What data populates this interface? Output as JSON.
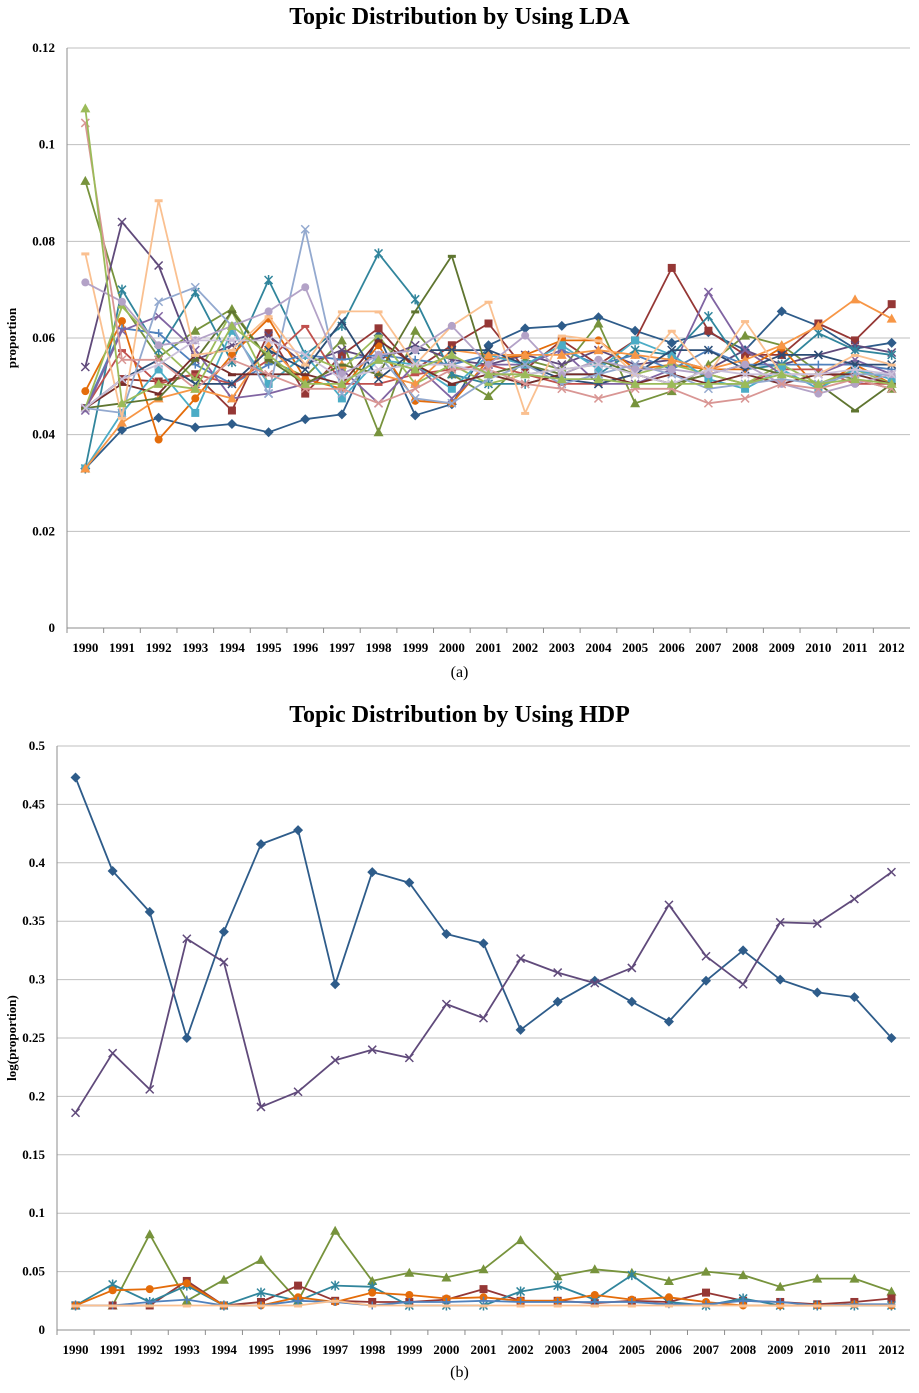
{
  "chart_data": [
    {
      "type": "line",
      "title": "Topic Distribution by Using LDA",
      "caption": "(a)",
      "xlabel": "",
      "ylabel": "proportion",
      "ylim": [
        0,
        0.12
      ],
      "yticks": [
        "0",
        "0.02",
        "0.04",
        "0.06",
        "0.08",
        "0.1",
        "0.12"
      ],
      "x": [
        "1990",
        "1991",
        "1992",
        "1993",
        "1994",
        "1995",
        "1996",
        "1997",
        "1998",
        "1999",
        "2000",
        "2001",
        "2002",
        "2003",
        "2004",
        "2005",
        "2006",
        "2007",
        "2008",
        "2009",
        "2010",
        "2011",
        "2012"
      ],
      "grid": true,
      "series": [
        {
          "color": "#2e5c8a",
          "marker": "diamond",
          "values": [
            0.033,
            0.041,
            0.0435,
            0.0415,
            0.0422,
            0.0405,
            0.0432,
            0.0442,
            0.0605,
            0.044,
            0.0463,
            0.0585,
            0.062,
            0.0625,
            0.0643,
            0.0615,
            0.059,
            0.0612,
            0.0575,
            0.0655,
            0.0625,
            0.0578,
            0.059
          ]
        },
        {
          "color": "#953735",
          "marker": "square",
          "values": [
            0.0455,
            0.0515,
            0.051,
            0.0525,
            0.045,
            0.061,
            0.0485,
            0.0565,
            0.062,
            0.0535,
            0.0585,
            0.063,
            0.0535,
            0.0595,
            0.0545,
            0.0595,
            0.0745,
            0.0615,
            0.0565,
            0.0565,
            0.063,
            0.0595,
            0.067
          ]
        },
        {
          "color": "#77933c",
          "marker": "triangle",
          "values": [
            0.0925,
            0.067,
            0.056,
            0.0615,
            0.066,
            0.0555,
            0.052,
            0.0595,
            0.0405,
            0.0615,
            0.0525,
            0.048,
            0.0555,
            0.0535,
            0.063,
            0.0465,
            0.049,
            0.0545,
            0.0605,
            0.0585,
            0.053,
            0.0515,
            0.0495
          ]
        },
        {
          "color": "#604a7b",
          "marker": "x",
          "values": [
            0.054,
            0.084,
            0.075,
            0.0555,
            0.0585,
            0.0605,
            0.0545,
            0.0575,
            0.0555,
            0.0585,
            0.0555,
            0.0545,
            0.0565,
            0.0545,
            0.0575,
            0.0545,
            0.0555,
            0.0535,
            0.0575,
            0.0545,
            0.0565,
            0.0585,
            0.057
          ]
        },
        {
          "color": "#31859c",
          "marker": "star",
          "values": [
            0.033,
            0.07,
            0.0575,
            0.0695,
            0.055,
            0.072,
            0.0565,
            0.0625,
            0.0775,
            0.068,
            0.0525,
            0.0505,
            0.0505,
            0.0525,
            0.0525,
            0.0575,
            0.0565,
            0.0645,
            0.0535,
            0.0545,
            0.061,
            0.0575,
            0.0565
          ]
        },
        {
          "color": "#e46c0a",
          "marker": "circle",
          "values": [
            0.049,
            0.0635,
            0.039,
            0.0475,
            0.0565,
            0.064,
            0.0515,
            0.0495,
            0.0585,
            0.047,
            0.0465,
            0.0555,
            0.0565,
            0.0595,
            0.0595,
            0.0535,
            0.0545,
            0.0535,
            0.0535,
            0.058,
            0.0495,
            0.0545,
            0.0505
          ]
        },
        {
          "color": "#4f81bd",
          "marker": "plus",
          "values": [
            0.0455,
            0.062,
            0.061,
            0.0545,
            0.0505,
            0.0545,
            0.0565,
            0.0555,
            0.0565,
            0.0555,
            0.0545,
            0.0565,
            0.0545,
            0.0575,
            0.0545,
            0.0565,
            0.0535,
            0.0575,
            0.0545,
            0.0545,
            0.0545,
            0.0545,
            0.0535
          ]
        },
        {
          "color": "#c0504d",
          "marker": "dash",
          "values": [
            0.0455,
            0.0575,
            0.0505,
            0.0525,
            0.0505,
            0.0555,
            0.0625,
            0.0505,
            0.0505,
            0.0525,
            0.0535,
            0.0545,
            0.0525,
            0.0505,
            0.0505,
            0.0525,
            0.0505,
            0.0525,
            0.0505,
            0.0535,
            0.0535,
            0.0505,
            0.0505
          ]
        },
        {
          "color": "#9bbb59",
          "marker": "dash",
          "values": [
            0.0455,
            0.0665,
            0.0585,
            0.0515,
            0.0655,
            0.0505,
            0.0565,
            0.0535,
            0.0605,
            0.0505,
            0.0545,
            0.0505,
            0.0525,
            0.0535,
            0.0545,
            0.0525,
            0.0545,
            0.0525,
            0.0505,
            0.0545,
            0.0505,
            0.0535,
            0.0505
          ]
        },
        {
          "color": "#8064a2",
          "marker": "x",
          "values": [
            0.045,
            0.0615,
            0.0645,
            0.0575,
            0.0475,
            0.0485,
            0.0505,
            0.0535,
            0.0465,
            0.0545,
            0.0475,
            0.0545,
            0.0545,
            0.0575,
            0.0505,
            0.0505,
            0.0535,
            0.0695,
            0.0575,
            0.0525,
            0.0525,
            0.0555,
            0.0525
          ]
        },
        {
          "color": "#4bacc6",
          "marker": "square",
          "values": [
            0.033,
            0.0445,
            0.0535,
            0.0445,
            0.0615,
            0.0505,
            0.0565,
            0.0475,
            0.0555,
            0.0545,
            0.0495,
            0.0565,
            0.0545,
            0.0585,
            0.0535,
            0.0595,
            0.0565,
            0.0515,
            0.0495,
            0.0535,
            0.0495,
            0.0535,
            0.0515
          ]
        },
        {
          "color": "#f79646",
          "marker": "triangle",
          "values": [
            0.033,
            0.0425,
            0.0475,
            0.0495,
            0.0475,
            0.0585,
            0.0505,
            0.0545,
            0.0525,
            0.0505,
            0.0575,
            0.0565,
            0.0565,
            0.0565,
            0.0575,
            0.0565,
            0.0555,
            0.0535,
            0.0555,
            0.0585,
            0.0625,
            0.068,
            0.064
          ]
        },
        {
          "color": "#2c4d75",
          "marker": "x",
          "values": [
            0.0455,
            0.0515,
            0.0555,
            0.0505,
            0.0505,
            0.0575,
            0.0535,
            0.0635,
            0.0515,
            0.0575,
            0.0575,
            0.0575,
            0.0545,
            0.0515,
            0.0505,
            0.0525,
            0.0575,
            0.0575,
            0.0535,
            0.0565,
            0.0565,
            0.0545,
            0.0545
          ]
        },
        {
          "color": "#772c2a",
          "marker": "dash",
          "values": [
            0.0455,
            0.0505,
            0.0485,
            0.0565,
            0.0525,
            0.0525,
            0.0525,
            0.0505,
            0.0595,
            0.0545,
            0.0505,
            0.0525,
            0.0505,
            0.0525,
            0.0525,
            0.0505,
            0.0525,
            0.0505,
            0.0525,
            0.0505,
            0.0525,
            0.0525,
            0.0505
          ]
        },
        {
          "color": "#5f7530",
          "marker": "dash",
          "values": [
            0.0455,
            0.0465,
            0.0475,
            0.0555,
            0.0655,
            0.0555,
            0.0505,
            0.0545,
            0.0525,
            0.0655,
            0.077,
            0.0525,
            0.0545,
            0.0525,
            0.0555,
            0.0525,
            0.0505,
            0.0525,
            0.0545,
            0.0525,
            0.0505,
            0.045,
            0.0505
          ]
        },
        {
          "color": "#93a9cf",
          "marker": "x",
          "values": [
            0.0455,
            0.0445,
            0.0675,
            0.0705,
            0.0625,
            0.0485,
            0.0825,
            0.0485,
            0.0565,
            0.0475,
            0.0465,
            0.0515,
            0.0545,
            0.0505,
            0.0525,
            0.0545,
            0.0525,
            0.0495,
            0.0505,
            0.0515,
            0.0505,
            0.0525,
            0.0525
          ]
        },
        {
          "color": "#fac090",
          "marker": "dash",
          "values": [
            0.0775,
            0.0435,
            0.0885,
            0.0565,
            0.0575,
            0.0645,
            0.0545,
            0.0655,
            0.0655,
            0.0545,
            0.0625,
            0.0675,
            0.0445,
            0.0605,
            0.0595,
            0.0525,
            0.0615,
            0.0525,
            0.0635,
            0.0525,
            0.0525,
            0.0565,
            0.0545
          ]
        },
        {
          "color": "#b3a2c7",
          "marker": "circle",
          "values": [
            0.0715,
            0.0675,
            0.0585,
            0.0595,
            0.0625,
            0.0655,
            0.0705,
            0.0525,
            0.0565,
            0.0575,
            0.0625,
            0.0545,
            0.0605,
            0.0525,
            0.0555,
            0.0535,
            0.0535,
            0.0525,
            0.0545,
            0.0505,
            0.0485,
            0.0505,
            0.0525
          ]
        },
        {
          "color": "#d99694",
          "marker": "x",
          "values": [
            0.1045,
            0.0555,
            0.0555,
            0.0495,
            0.0555,
            0.0525,
            0.0495,
            0.0495,
            0.0465,
            0.0495,
            0.0535,
            0.0535,
            0.0505,
            0.0495,
            0.0475,
            0.0495,
            0.0495,
            0.0465,
            0.0475,
            0.0505,
            0.0495,
            0.0515,
            0.0495
          ]
        },
        {
          "color": "#ccc1da",
          "marker": "x",
          "values": [
            0.0455,
            0.0515,
            0.0545,
            0.0595,
            0.0595,
            0.0595,
            0.0565,
            0.0515,
            0.0535,
            0.0545,
            0.0545,
            0.0525,
            0.0525,
            0.0535,
            0.0545,
            0.0525,
            0.0505,
            0.0535,
            0.0525,
            0.0525,
            0.0525,
            0.0535,
            0.0525
          ]
        },
        {
          "color": "#9bbb59",
          "marker": "triangle",
          "values": [
            0.1075,
            0.0465,
            0.0505,
            0.0495,
            0.0625,
            0.0565,
            0.0505,
            0.0505,
            0.0555,
            0.0535,
            0.0565,
            0.0525,
            0.0525,
            0.0515,
            0.0515,
            0.0505,
            0.0505,
            0.0505,
            0.0505,
            0.0525,
            0.0505,
            0.0515,
            0.0505
          ]
        }
      ]
    },
    {
      "type": "line",
      "title": "Topic Distribution by Using HDP",
      "caption": "(b)",
      "xlabel": "",
      "ylabel": "log(proportion)",
      "ylim": [
        0,
        0.5
      ],
      "yticks": [
        "0",
        "0.05",
        "0.1",
        "0.15",
        "0.2",
        "0.25",
        "0.3",
        "0.35",
        "0.4",
        "0.45",
        "0.5"
      ],
      "x": [
        "1990",
        "1991",
        "1992",
        "1993",
        "1994",
        "1995",
        "1996",
        "1997",
        "1998",
        "1999",
        "2000",
        "2001",
        "2002",
        "2003",
        "2004",
        "2005",
        "2006",
        "2007",
        "2008",
        "2009",
        "2010",
        "2011",
        "2012"
      ],
      "grid": true,
      "series": [
        {
          "color": "#2e5c8a",
          "marker": "diamond",
          "values": [
            0.473,
            0.393,
            0.358,
            0.25,
            0.341,
            0.416,
            0.428,
            0.296,
            0.392,
            0.383,
            0.339,
            0.331,
            0.257,
            0.281,
            0.299,
            0.281,
            0.264,
            0.299,
            0.325,
            0.3,
            0.289,
            0.285,
            0.25
          ]
        },
        {
          "color": "#604a7b",
          "marker": "x",
          "values": [
            0.186,
            0.237,
            0.206,
            0.335,
            0.315,
            0.191,
            0.204,
            0.231,
            0.24,
            0.233,
            0.279,
            0.267,
            0.318,
            0.306,
            0.297,
            0.31,
            0.364,
            0.32,
            0.296,
            0.349,
            0.348,
            0.369,
            0.392
          ]
        },
        {
          "color": "#77933c",
          "marker": "triangle",
          "values": [
            0.021,
            0.021,
            0.082,
            0.025,
            0.043,
            0.06,
            0.025,
            0.085,
            0.042,
            0.049,
            0.045,
            0.052,
            0.077,
            0.046,
            0.052,
            0.049,
            0.042,
            0.05,
            0.047,
            0.037,
            0.044,
            0.044,
            0.033
          ]
        },
        {
          "color": "#953735",
          "marker": "square",
          "values": [
            0.021,
            0.021,
            0.021,
            0.042,
            0.021,
            0.024,
            0.038,
            0.025,
            0.024,
            0.024,
            0.026,
            0.035,
            0.025,
            0.025,
            0.023,
            0.025,
            0.024,
            0.032,
            0.025,
            0.024,
            0.022,
            0.024,
            0.027
          ]
        },
        {
          "color": "#31859c",
          "marker": "star",
          "values": [
            0.021,
            0.039,
            0.024,
            0.038,
            0.021,
            0.032,
            0.025,
            0.038,
            0.037,
            0.021,
            0.021,
            0.021,
            0.033,
            0.038,
            0.026,
            0.047,
            0.024,
            0.021,
            0.027,
            0.021,
            0.021,
            0.021,
            0.021
          ]
        },
        {
          "color": "#e46c0a",
          "marker": "circle",
          "values": [
            0.021,
            0.034,
            0.035,
            0.04,
            0.021,
            0.021,
            0.028,
            0.024,
            0.032,
            0.03,
            0.027,
            0.028,
            0.025,
            0.025,
            0.03,
            0.026,
            0.028,
            0.024,
            0.021,
            0.021,
            0.021,
            0.022,
            0.021
          ]
        },
        {
          "color": "#4f81bd",
          "marker": "plus",
          "values": [
            0.021,
            0.021,
            0.024,
            0.026,
            0.021,
            0.021,
            0.025,
            0.024,
            0.021,
            0.024,
            0.024,
            0.025,
            0.024,
            0.024,
            0.024,
            0.024,
            0.022,
            0.022,
            0.025,
            0.024,
            0.021,
            0.022,
            0.022
          ]
        },
        {
          "color": "#fac090",
          "marker": "dash",
          "values": [
            0.021,
            0.021,
            0.021,
            0.021,
            0.021,
            0.021,
            0.021,
            0.025,
            0.021,
            0.021,
            0.021,
            0.021,
            0.021,
            0.021,
            0.021,
            0.021,
            0.021,
            0.021,
            0.021,
            0.021,
            0.021,
            0.021,
            0.021
          ]
        }
      ]
    }
  ]
}
